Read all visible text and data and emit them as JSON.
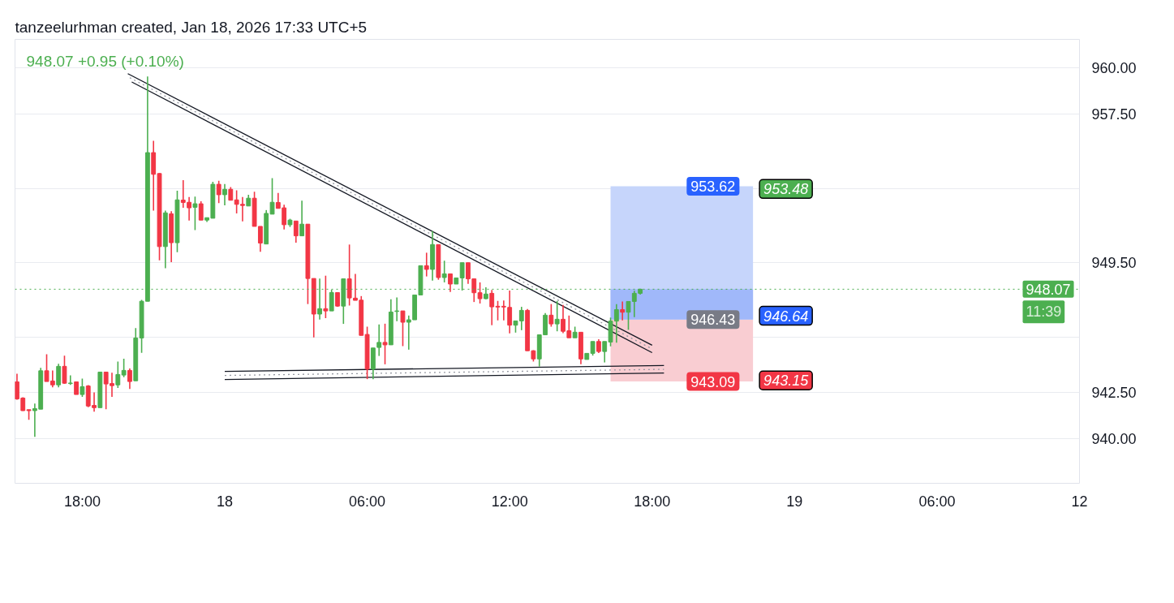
{
  "chart_data": {
    "type": "candlestick",
    "title": "948.07 +0.95 (+0.10%)",
    "subtitle": "tanzeelurhman created, Jan 18, 2026 17:33 UTC+5",
    "x": [
      "2026-01-17T15:15",
      "2026-01-17T15:30",
      "2026-01-17T15:45",
      "2026-01-17T16:00",
      "2026-01-17T16:15",
      "2026-01-17T16:30",
      "2026-01-17T16:45",
      "2026-01-17T17:00",
      "2026-01-17T17:15",
      "2026-01-17T17:30",
      "2026-01-17T17:45",
      "2026-01-17T18:00",
      "2026-01-17T18:15",
      "2026-01-17T18:30",
      "2026-01-17T18:45",
      "2026-01-17T19:00",
      "2026-01-17T19:15",
      "2026-01-17T19:30",
      "2026-01-17T19:45",
      "2026-01-17T20:00",
      "2026-01-17T20:15",
      "2026-01-17T20:30",
      "2026-01-17T20:45",
      "2026-01-17T21:00",
      "2026-01-17T21:15",
      "2026-01-17T21:30",
      "2026-01-17T21:45",
      "2026-01-17T22:00",
      "2026-01-17T22:15",
      "2026-01-17T22:30",
      "2026-01-17T22:45",
      "2026-01-17T23:00",
      "2026-01-17T23:15",
      "2026-01-17T23:30",
      "2026-01-17T23:45",
      "2026-01-18T00:00",
      "2026-01-18T00:15",
      "2026-01-18T00:30",
      "2026-01-18T00:45",
      "2026-01-18T01:00",
      "2026-01-18T01:15",
      "2026-01-18T01:30",
      "2026-01-18T01:45",
      "2026-01-18T02:00",
      "2026-01-18T02:15",
      "2026-01-18T02:30",
      "2026-01-18T02:45",
      "2026-01-18T03:00",
      "2026-01-18T03:15",
      "2026-01-18T03:30",
      "2026-01-18T03:45",
      "2026-01-18T04:00",
      "2026-01-18T04:15",
      "2026-01-18T04:30",
      "2026-01-18T04:45",
      "2026-01-18T05:00",
      "2026-01-18T05:15",
      "2026-01-18T05:30",
      "2026-01-18T05:45",
      "2026-01-18T06:00",
      "2026-01-18T06:15",
      "2026-01-18T06:30",
      "2026-01-18T06:45",
      "2026-01-18T07:00",
      "2026-01-18T07:15",
      "2026-01-18T07:30",
      "2026-01-18T07:45",
      "2026-01-18T08:00",
      "2026-01-18T08:15",
      "2026-01-18T08:30",
      "2026-01-18T08:45",
      "2026-01-18T09:00",
      "2026-01-18T09:15",
      "2026-01-18T09:30",
      "2026-01-18T09:45",
      "2026-01-18T10:00",
      "2026-01-18T10:15",
      "2026-01-18T10:30",
      "2026-01-18T10:45",
      "2026-01-18T11:00",
      "2026-01-18T11:15",
      "2026-01-18T11:30",
      "2026-01-18T11:45",
      "2026-01-18T12:00",
      "2026-01-18T12:15",
      "2026-01-18T12:30",
      "2026-01-18T12:45",
      "2026-01-18T13:00",
      "2026-01-18T13:15",
      "2026-01-18T13:30",
      "2026-01-18T13:45",
      "2026-01-18T14:00",
      "2026-01-18T14:15",
      "2026-01-18T14:30",
      "2026-01-18T14:45",
      "2026-01-18T15:00",
      "2026-01-18T15:15",
      "2026-01-18T15:30",
      "2026-01-18T15:45",
      "2026-01-18T16:00",
      "2026-01-18T16:15",
      "2026-01-18T16:30",
      "2026-01-18T16:45",
      "2026-01-18T17:00",
      "2026-01-18T17:15",
      "2026-01-18T17:30"
    ],
    "ohlc": [
      [
        943.07,
        943.51,
        942.11,
        942.15
      ],
      [
        942.2,
        942.24,
        941.51,
        941.52
      ],
      [
        941.57,
        941.57,
        941.03,
        941.52
      ],
      [
        941.52,
        941.9,
        940.11,
        941.63
      ],
      [
        941.6,
        943.83,
        941.6,
        943.67
      ],
      [
        943.67,
        944.56,
        943.09,
        943.09
      ],
      [
        943.12,
        943.69,
        942.78,
        942.91
      ],
      [
        942.91,
        944.05,
        942.78,
        943.91
      ],
      [
        943.91,
        944.48,
        942.96,
        943.0
      ],
      [
        942.98,
        943.42,
        942.91,
        943.01
      ],
      [
        943.07,
        943.07,
        942.39,
        942.39
      ],
      [
        942.39,
        943.25,
        942.26,
        942.81
      ],
      [
        942.85,
        942.9,
        941.71,
        941.77
      ],
      [
        941.8,
        942.5,
        941.46,
        941.68
      ],
      [
        941.68,
        943.6,
        941.68,
        943.6
      ],
      [
        943.6,
        943.6,
        941.6,
        942.96
      ],
      [
        942.98,
        943.57,
        942.26,
        942.87
      ],
      [
        942.91,
        944.17,
        942.74,
        943.47
      ],
      [
        943.44,
        944.32,
        943.32,
        943.69
      ],
      [
        943.69,
        943.8,
        942.69,
        943.09
      ],
      [
        943.13,
        945.97,
        943.13,
        945.44
      ],
      [
        945.44,
        947.49,
        944.64,
        947.42
      ],
      [
        947.42,
        959.55,
        947.42,
        955.44
      ],
      [
        955.44,
        956.08,
        952.31,
        954.27
      ],
      [
        954.31,
        954.34,
        949.63,
        950.37
      ],
      [
        950.37,
        952.31,
        949.2,
        952.19
      ],
      [
        952.14,
        952.28,
        949.53,
        950.58
      ],
      [
        950.58,
        953.38,
        950.07,
        952.89
      ],
      [
        952.88,
        953.95,
        952.46,
        952.75
      ],
      [
        952.76,
        953.04,
        951.77,
        952.46
      ],
      [
        952.49,
        953.07,
        951.26,
        952.68
      ],
      [
        952.68,
        952.82,
        951.8,
        951.8
      ],
      [
        951.8,
        951.93,
        951.7,
        951.93
      ],
      [
        951.9,
        953.87,
        951.9,
        953.73
      ],
      [
        953.73,
        953.92,
        952.72,
        953.17
      ],
      [
        953.17,
        953.74,
        952.6,
        953.46
      ],
      [
        953.46,
        953.58,
        952.87,
        952.87
      ],
      [
        952.89,
        953.41,
        952.16,
        952.65
      ],
      [
        952.65,
        953.04,
        951.73,
        952.59
      ],
      [
        952.56,
        953.16,
        952.56,
        952.98
      ],
      [
        952.98,
        953.33,
        951.46,
        951.46
      ],
      [
        951.46,
        951.46,
        950.09,
        950.56
      ],
      [
        950.51,
        952.34,
        950.51,
        952.16
      ],
      [
        952.12,
        954.06,
        952.12,
        952.76
      ],
      [
        952.75,
        953.26,
        952.43,
        952.43
      ],
      [
        952.46,
        952.63,
        951.29,
        951.55
      ],
      [
        951.55,
        951.87,
        951.43,
        951.8
      ],
      [
        951.75,
        951.75,
        950.58,
        950.95
      ],
      [
        950.95,
        952.85,
        950.95,
        951.58
      ],
      [
        951.58,
        951.58,
        947.27,
        948.65
      ],
      [
        948.65,
        948.65,
        945.47,
        946.73
      ],
      [
        946.73,
        948.65,
        946.43,
        947.02
      ],
      [
        947.02,
        948.8,
        946.51,
        946.9
      ],
      [
        946.9,
        948.04,
        946.9,
        947.89
      ],
      [
        947.89,
        947.89,
        947.12,
        947.16
      ],
      [
        947.16,
        948.63,
        946.2,
        948.63
      ],
      [
        948.63,
        950.48,
        947.19,
        947.6
      ],
      [
        947.59,
        948.9,
        947.47,
        947.47
      ],
      [
        947.48,
        947.7,
        945.58,
        945.58
      ],
      [
        945.63,
        946.05,
        943.22,
        943.76
      ],
      [
        943.76,
        944.9,
        943.22,
        944.9
      ],
      [
        944.93,
        946.17,
        944.47,
        945.2
      ],
      [
        945.2,
        946.21,
        944.02,
        945.07
      ],
      [
        945.07,
        947.53,
        945.07,
        946.84
      ],
      [
        946.87,
        947.63,
        946.35,
        946.9
      ],
      [
        946.9,
        946.9,
        945.0,
        946.29
      ],
      [
        946.29,
        946.65,
        944.81,
        946.42
      ],
      [
        946.42,
        947.76,
        946.42,
        947.76
      ],
      [
        947.76,
        949.34,
        947.76,
        949.34
      ],
      [
        949.34,
        950.04,
        948.76,
        949.14
      ],
      [
        949.14,
        951.21,
        948.54,
        950.48
      ],
      [
        950.48,
        950.48,
        948.58,
        948.7
      ],
      [
        948.7,
        949.61,
        948.44,
        948.9
      ],
      [
        948.9,
        948.9,
        947.92,
        948.35
      ],
      [
        948.35,
        948.68,
        948.35,
        948.68
      ],
      [
        948.68,
        949.5,
        948.0,
        949.5
      ],
      [
        949.5,
        949.5,
        948.36,
        948.63
      ],
      [
        948.63,
        948.63,
        947.38,
        947.88
      ],
      [
        947.88,
        948.44,
        947.3,
        947.56
      ],
      [
        947.56,
        948.17,
        947.53,
        947.81
      ],
      [
        947.85,
        948.03,
        946.13,
        947.12
      ],
      [
        947.15,
        947.44,
        946.39,
        947.11
      ],
      [
        947.15,
        947.46,
        946.39,
        947.11
      ],
      [
        947.09,
        948.0,
        945.69,
        946.13
      ],
      [
        946.13,
        946.36,
        945.73,
        946.36
      ],
      [
        946.36,
        947.12,
        945.86,
        946.93
      ],
      [
        946.93,
        947.0,
        944.75,
        944.75
      ],
      [
        944.75,
        944.78,
        944.17,
        944.31
      ],
      [
        944.31,
        945.61,
        943.9,
        945.61
      ],
      [
        945.61,
        946.78,
        945.61,
        946.67
      ],
      [
        946.67,
        947.27,
        946.05,
        946.2
      ],
      [
        946.2,
        947.44,
        945.8,
        946.45
      ],
      [
        946.45,
        947.22,
        945.7,
        945.8
      ],
      [
        945.83,
        946.65,
        945.45,
        945.45
      ],
      [
        945.45,
        946.05,
        945.45,
        945.75
      ],
      [
        945.75,
        945.75,
        944.02,
        944.31
      ],
      [
        944.28,
        944.61,
        944.28,
        944.61
      ],
      [
        944.61,
        945.25,
        944.49,
        945.25
      ],
      [
        945.25,
        945.37,
        944.63,
        944.71
      ],
      [
        944.71,
        945.25,
        944.12,
        945.25
      ],
      [
        945.22,
        946.54,
        944.99,
        946.35
      ],
      [
        946.35,
        947.27,
        945.19,
        946.97
      ],
      [
        946.97,
        947.41,
        946.39,
        946.83
      ],
      [
        946.83,
        947.41,
        945.88,
        947.41
      ],
      [
        947.41,
        947.99,
        946.56,
        947.85
      ],
      [
        947.85,
        948.1,
        947.78,
        948.07
      ]
    ],
    "colors": [
      "#f23645",
      "#f23645",
      "#f23645",
      "#4caf50",
      "#4caf50",
      "#f23645",
      "#f23645",
      "#4caf50",
      "#f23645",
      "#4caf50",
      "#f23645",
      "#4caf50",
      "#f23645",
      "#f23645",
      "#4caf50",
      "#f23645",
      "#f23645",
      "#4caf50",
      "#4caf50",
      "#f23645",
      "#4caf50",
      "#4caf50",
      "#4caf50",
      "#f23645",
      "#f23645",
      "#4caf50",
      "#f23645",
      "#4caf50",
      "#f23645",
      "#f23645",
      "#4caf50",
      "#f23645",
      "#4caf50",
      "#4caf50",
      "#f23645",
      "#4caf50",
      "#f23645",
      "#f23645",
      "#f23645",
      "#4caf50",
      "#f23645",
      "#f23645",
      "#4caf50",
      "#4caf50",
      "#f23645",
      "#f23645",
      "#4caf50",
      "#f23645",
      "#4caf50",
      "#f23645",
      "#f23645",
      "#4caf50",
      "#f23645",
      "#4caf50",
      "#f23645",
      "#4caf50",
      "#f23645",
      "#f23645",
      "#f23645",
      "#f23645",
      "#4caf50",
      "#4caf50",
      "#f23645",
      "#4caf50",
      "#4caf50",
      "#f23645",
      "#4caf50",
      "#4caf50",
      "#4caf50",
      "#f23645",
      "#4caf50",
      "#f23645",
      "#4caf50",
      "#f23645",
      "#4caf50",
      "#4caf50",
      "#f23645",
      "#f23645",
      "#f23645",
      "#4caf50",
      "#f23645",
      "#f23645",
      "#f23645",
      "#f23645",
      "#4caf50",
      "#4caf50",
      "#f23645",
      "#f23645",
      "#4caf50",
      "#4caf50",
      "#f23645",
      "#4caf50",
      "#f23645",
      "#f23645",
      "#4caf50",
      "#f23645",
      "#4caf50",
      "#4caf50",
      "#f23645",
      "#4caf50",
      "#4caf50",
      "#4caf50",
      "#f23645",
      "#4caf50",
      "#4caf50",
      "#4caf50"
    ],
    "series": [
      {
        "type": "bar",
        "x": [
          "2026-01-18T19:15"
        ],
        "base": [
          946.43
        ],
        "values": [
          7.19
        ],
        "color": "#c6d5fb"
      },
      {
        "type": "bar",
        "x": [
          "2026-01-18T19:15"
        ],
        "base": [
          943.09
        ],
        "values": [
          3.34
        ],
        "color": "#f9cdd2"
      },
      {
        "type": "bar",
        "x": [
          "2026-01-18T19:15"
        ],
        "base": [
          946.43
        ],
        "values": [
          1.64
        ],
        "color": "#a0b8fa"
      },
      {
        "type": "line",
        "x": [
          "2026-01-17T19:55",
          "2026-01-18T18:00"
        ],
        "values": [
          959.7,
          945.05
        ],
        "color": "#131722"
      },
      {
        "type": "line",
        "x": [
          "2026-01-17T20:05",
          "2026-01-18T18:00"
        ],
        "values": [
          959.25,
          944.65
        ],
        "color": "#131722"
      },
      {
        "type": "line",
        "x": [
          "2026-01-17T20:00",
          "2026-01-18T18:00"
        ],
        "values": [
          959.48,
          944.85
        ],
        "color": "#9598a1",
        "line_style": "dotted"
      },
      {
        "type": "line",
        "x": [
          "2026-01-18T00:00",
          "2026-01-18T18:30"
        ],
        "values": [
          943.64,
          943.95
        ],
        "color": "#131722"
      },
      {
        "type": "line",
        "x": [
          "2026-01-18T00:00",
          "2026-01-18T18:30"
        ],
        "values": [
          943.2,
          943.55
        ],
        "color": "#131722"
      },
      {
        "type": "line",
        "x": [
          "2026-01-18T00:00",
          "2026-01-18T18:30"
        ],
        "values": [
          943.42,
          943.75
        ],
        "color": "#9598a1",
        "line_style": "dotted"
      }
    ],
    "xlim": [
      "2026-01-17T15:10",
      "2026-01-19T12:00"
    ],
    "ylim": [
      937.6,
      961.55
    ],
    "xticks": [
      {
        "value": "2026-01-17T18:00",
        "label": "18:00"
      },
      {
        "value": "2026-01-18T00:00",
        "label": "18"
      },
      {
        "value": "2026-01-18T06:00",
        "label": "06:00"
      },
      {
        "value": "2026-01-18T12:00",
        "label": "12:00"
      },
      {
        "value": "2026-01-18T18:00",
        "label": "18:00"
      },
      {
        "value": "2026-01-19T00:00",
        "label": "19"
      },
      {
        "value": "2026-01-19T06:00",
        "label": "06:00"
      },
      {
        "value": "2026-01-19T12:00",
        "label": "12"
      }
    ],
    "yticks": [
      {
        "value": 940,
        "label": "940.00"
      },
      {
        "value": 942.5,
        "label": "942.50"
      },
      {
        "value": 945.5,
        "label": null
      },
      {
        "value": 949.5,
        "label": "949.50"
      },
      {
        "value": 953.5,
        "label": null
      },
      {
        "value": 957.5,
        "label": "957.50"
      },
      {
        "value": 960,
        "label": "960.00"
      }
    ],
    "grid": "y",
    "ref_lines": [
      {
        "axis": "y",
        "value": 948.07,
        "label": "948.07\n11:39",
        "color": "#4caf50",
        "line_style": "dotted"
      }
    ],
    "annotations": [
      {
        "text": "953.48",
        "x": "2026-01-18T22:15",
        "y": 953.48
      },
      {
        "text": "946.64",
        "x": "2026-01-18T22:15",
        "y": 946.64
      },
      {
        "text": "943.15",
        "x": "2026-01-18T22:15",
        "y": 943.15
      },
      {
        "text": "953.62",
        "x": "2026-01-18T19:15",
        "y": 953.62
      },
      {
        "text": "946.43",
        "x": "2026-01-18T19:15",
        "y": 946.43
      },
      {
        "text": "943.09",
        "x": "2026-01-18T19:15",
        "y": 943.09
      }
    ]
  }
}
